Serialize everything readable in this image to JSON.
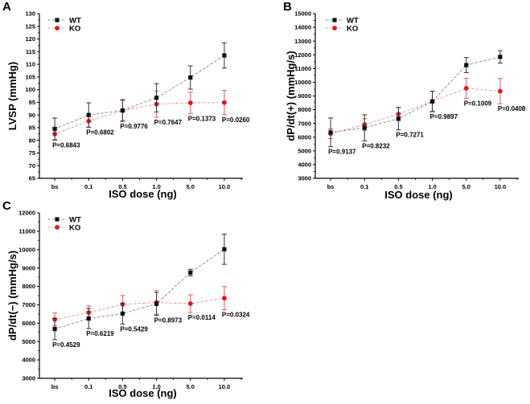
{
  "colors": {
    "wt": "#111111",
    "ko": "#e8141b",
    "ko_err": "#e05a5e",
    "axis": "#000000"
  },
  "chart_data": [
    {
      "panel": "A",
      "type": "line",
      "xlabel": "ISO dose (ng)",
      "ylabel": "LVSP (mmHg)",
      "ylim": [
        65,
        130
      ],
      "yticks": [
        65,
        70,
        75,
        80,
        85,
        90,
        95,
        100,
        105,
        110,
        115,
        120,
        125,
        130
      ],
      "categories": [
        "bs",
        "0.1",
        "0.5",
        "1.0",
        "5.0",
        "10.0"
      ],
      "legend": {
        "position": "top-left",
        "entries": [
          "WT",
          "KO"
        ]
      },
      "series": [
        {
          "name": "WT",
          "values": [
            84.5,
            90.0,
            91.8,
            96.8,
            104.8,
            113.5
          ],
          "errors": [
            4.3,
            4.8,
            4.3,
            5.6,
            4.6,
            5.0
          ]
        },
        {
          "name": "KO",
          "values": [
            82.5,
            87.6,
            91.7,
            94.3,
            94.8,
            94.9
          ],
          "errors": [
            2.5,
            2.5,
            4.0,
            5.2,
            4.2,
            4.8
          ]
        }
      ],
      "p_values": [
        "P=0.6843",
        "P=0.6802",
        "P=0.9776",
        "P=0.7647",
        "P=0.1373",
        "P=0.0260"
      ]
    },
    {
      "panel": "B",
      "type": "line",
      "xlabel": "ISO dose (ng)",
      "ylabel": "dP/dt(+) (mmHg/s)",
      "ylim": [
        3000,
        15000
      ],
      "yticks": [
        3000,
        4000,
        5000,
        6000,
        7000,
        8000,
        9000,
        10000,
        11000,
        12000,
        13000,
        14000,
        15000
      ],
      "categories": [
        "bs",
        "0.1",
        "0.5",
        "1.0",
        "5.0",
        "10.0"
      ],
      "legend": {
        "position": "top-left",
        "entries": [
          "WT",
          "KO"
        ]
      },
      "series": [
        {
          "name": "WT",
          "values": [
            6350,
            6680,
            7350,
            8600,
            11250,
            11850
          ],
          "errors": [
            1050,
            950,
            820,
            750,
            550,
            450
          ]
        },
        {
          "name": "KO",
          "values": [
            6250,
            6920,
            7680,
            8620,
            9560,
            9350
          ],
          "errors": [
            360,
            420,
            480,
            720,
            730,
            920
          ]
        }
      ],
      "p_values": [
        "P=0.9137",
        "P=0.8232",
        "P=0.7271",
        "P=0.9897",
        "P=0.1009",
        "P=0.0408"
      ]
    },
    {
      "panel": "C",
      "type": "line",
      "xlabel": "ISO dose (ng)",
      "ylabel": "dP/dt(−) (mmHg/s)",
      "ylim": [
        3000,
        12000
      ],
      "yticks": [
        3000,
        4000,
        5000,
        6000,
        7000,
        8000,
        9000,
        10000,
        11000,
        12000
      ],
      "categories": [
        "bs",
        "0.1",
        "0.5",
        "1.0",
        "5.0",
        "10.0"
      ],
      "legend": {
        "position": "top-left",
        "entries": [
          "WT",
          "KO"
        ]
      },
      "series": [
        {
          "name": "WT",
          "values": [
            5680,
            6250,
            6520,
            7050,
            8750,
            10020
          ],
          "errors": [
            580,
            550,
            570,
            620,
            180,
            820
          ]
        },
        {
          "name": "KO",
          "values": [
            6200,
            6580,
            7020,
            7130,
            7060,
            7360
          ],
          "errors": [
            350,
            360,
            480,
            640,
            480,
            630
          ]
        }
      ],
      "p_values": [
        "P=0.4529",
        "P=0.6219",
        "P=0.5429",
        "P=0.8973",
        "P=0.0114",
        "P=0.0324"
      ]
    }
  ]
}
